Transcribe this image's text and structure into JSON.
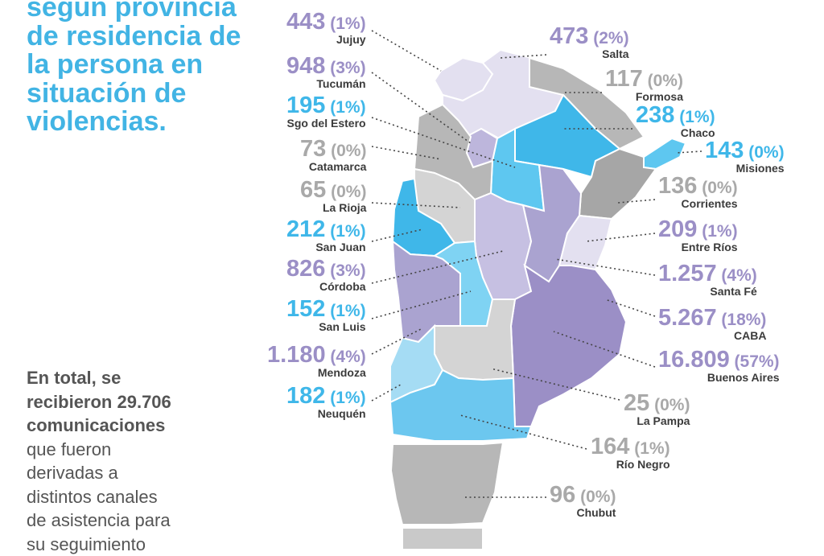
{
  "title_lines": [
    "según provincia",
    "de residencia de",
    "la persona en",
    "situación de",
    "violencias."
  ],
  "summary": {
    "bold_lines": [
      "En total, se",
      "recibieron 29.706",
      "comunicaciones"
    ],
    "lines": [
      "que fueron",
      "derivadas a",
      "distintos canales",
      "de asistencia para",
      "su seguimiento"
    ]
  },
  "colors": {
    "title": "#42b4e4",
    "blue": "#3fb7e9",
    "purple": "#9b8fc6",
    "gray": "#a9a9a9",
    "text": "#555555"
  },
  "chart_data": {
    "type": "table",
    "columns": [
      "province",
      "communications",
      "percent"
    ],
    "rows": [
      {
        "province": "Jujuy",
        "value": "443",
        "percent": "(1%)",
        "color": "purple"
      },
      {
        "province": "Tucumán",
        "value": "948",
        "percent": "(3%)",
        "color": "purple"
      },
      {
        "province": "Sgo del Estero",
        "value": "195",
        "percent": "(1%)",
        "color": "blue"
      },
      {
        "province": "Catamarca",
        "value": "73",
        "percent": "(0%)",
        "color": "gray"
      },
      {
        "province": "La Rioja",
        "value": "65",
        "percent": "(0%)",
        "color": "gray"
      },
      {
        "province": "San Juan",
        "value": "212",
        "percent": "(1%)",
        "color": "blue"
      },
      {
        "province": "Córdoba",
        "value": "826",
        "percent": "(3%)",
        "color": "purple"
      },
      {
        "province": "San Luis",
        "value": "152",
        "percent": "(1%)",
        "color": "blue"
      },
      {
        "province": "Mendoza",
        "value": "1.180",
        "percent": "(4%)",
        "color": "purple"
      },
      {
        "province": "Neuquén",
        "value": "182",
        "percent": "(1%)",
        "color": "blue"
      },
      {
        "province": "Salta",
        "value": "473",
        "percent": "(2%)",
        "color": "purple"
      },
      {
        "province": "Formosa",
        "value": "117",
        "percent": "(0%)",
        "color": "gray"
      },
      {
        "province": "Chaco",
        "value": "238",
        "percent": "(1%)",
        "color": "blue"
      },
      {
        "province": "Misiones",
        "value": "143",
        "percent": "(0%)",
        "color": "blue"
      },
      {
        "province": "Corrientes",
        "value": "136",
        "percent": "(0%)",
        "color": "gray"
      },
      {
        "province": "Entre Ríos",
        "value": "209",
        "percent": "(1%)",
        "color": "purple"
      },
      {
        "province": "Santa Fé",
        "value": "1.257",
        "percent": "(4%)",
        "color": "purple"
      },
      {
        "province": "CABA",
        "value": "5.267",
        "percent": "(18%)",
        "color": "purple"
      },
      {
        "province": "Buenos Aires",
        "value": "16.809",
        "percent": "(57%)",
        "color": "purple"
      },
      {
        "province": "La Pampa",
        "value": "25",
        "percent": "(0%)",
        "color": "gray"
      },
      {
        "province": "Río Negro",
        "value": "164",
        "percent": "(1%)",
        "color": "gray"
      },
      {
        "province": "Chubut",
        "value": "96",
        "percent": "(0%)",
        "color": "gray"
      }
    ]
  }
}
